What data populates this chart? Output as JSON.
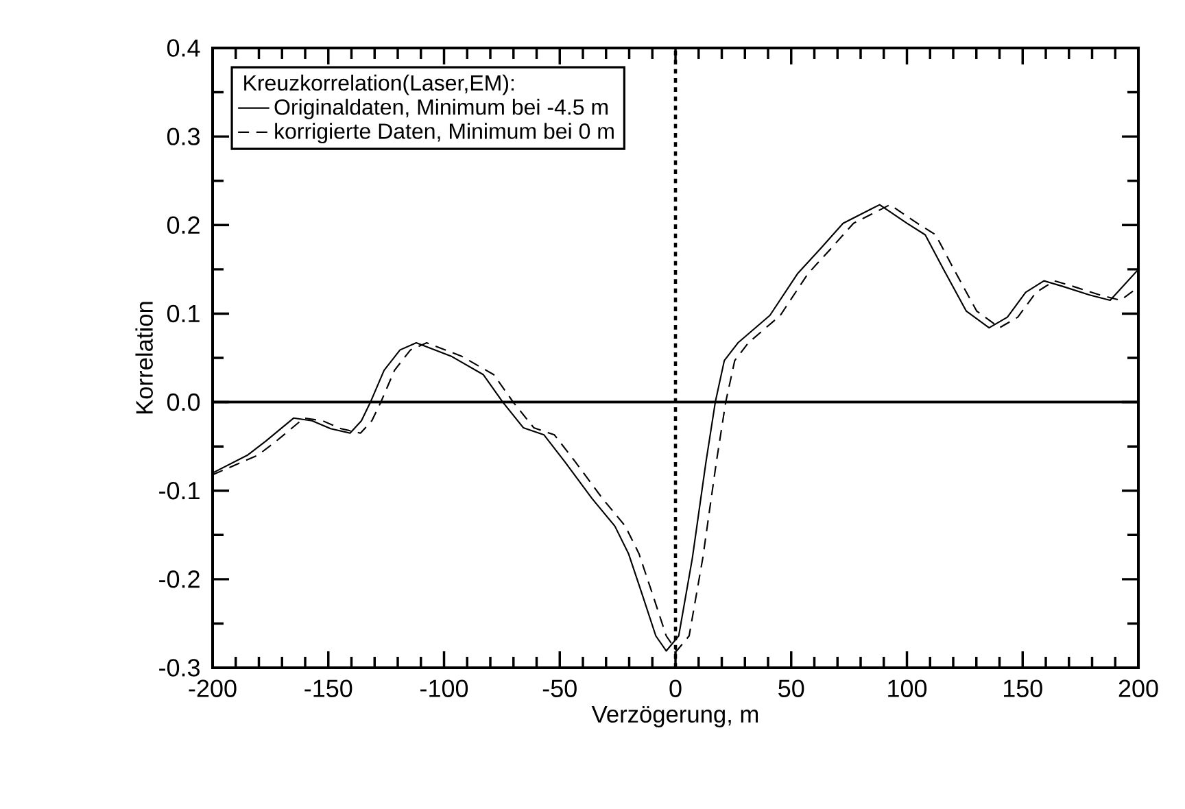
{
  "chart_data": {
    "type": "line",
    "xlabel": "Verzögerung, m",
    "ylabel": "Korrelation",
    "xlim": [
      -200,
      200
    ],
    "ylim": [
      -0.3,
      0.4
    ],
    "xticks": [
      -200,
      -150,
      -100,
      -50,
      0,
      50,
      100,
      150,
      200
    ],
    "yticks": [
      -0.3,
      -0.2,
      -0.1,
      {
        "value": 0,
        "label": "0.0"
      },
      0.1,
      0.2,
      0.3,
      0.4
    ],
    "legend": "top left",
    "legend_title": "Kreuzkorrelation(Laser,EM):",
    "ref_lines": [
      {
        "axis": "y",
        "value": 0,
        "line_style": "solid"
      },
      {
        "axis": "x",
        "value": 0,
        "line_style": "dotted"
      }
    ],
    "series": [
      {
        "name": "Originaldaten, Minimum bei -4.5 m",
        "color": "#000000",
        "line_style": "solid",
        "x": [
          -200,
          -185,
          -177,
          -165,
          -157,
          -149,
          -140.6,
          -135.7,
          -131.8,
          -125.9,
          -119,
          -112,
          -97,
          -83,
          -74.6,
          -65.7,
          -56.8,
          -47.9,
          -36,
          -26.2,
          -20.3,
          -14.4,
          -8.5,
          -4,
          1.4,
          7.3,
          13.2,
          17.2,
          21.1,
          27,
          40.8,
          52.7,
          62.5,
          72.4,
          88.2,
          100,
          107.9,
          115.8,
          125.6,
          135.5,
          143.4,
          151.3,
          159.2,
          167,
          178.9,
          187.8,
          200
        ],
        "values": [
          -0.08,
          -0.06,
          -0.044,
          -0.018,
          -0.021,
          -0.03,
          -0.035,
          -0.021,
          0.0,
          0.036,
          0.059,
          0.067,
          0.052,
          0.031,
          0.0,
          -0.029,
          -0.037,
          -0.067,
          -0.109,
          -0.14,
          -0.171,
          -0.217,
          -0.264,
          -0.281,
          -0.264,
          -0.176,
          -0.067,
          0.0,
          0.047,
          0.067,
          0.098,
          0.145,
          0.173,
          0.202,
          0.223,
          0.202,
          0.189,
          0.15,
          0.103,
          0.084,
          0.096,
          0.124,
          0.137,
          0.131,
          0.121,
          0.115,
          0.15
        ]
      },
      {
        "name": "korrigierte Daten, Minimum bei 0 m",
        "color": "#000000",
        "line_style": "dashed",
        "x": [
          -200,
          -180.5,
          -172.5,
          -160.5,
          -152.5,
          -144.5,
          -136.1,
          -131.2,
          -127.3,
          -121.4,
          -114.5,
          -107.5,
          -92.5,
          -78.5,
          -70.1,
          -61.2,
          -52.3,
          -43.4,
          -31.5,
          -21.7,
          -15.8,
          -9.9,
          -4,
          0.5,
          5.9,
          11.8,
          17.7,
          21.7,
          25.6,
          31.5,
          45.3,
          57.2,
          67,
          76.9,
          92.7,
          104.5,
          112.4,
          120.3,
          130.1,
          140,
          147.9,
          155.8,
          163.7,
          171.5,
          183.4,
          192.3,
          200
        ],
        "values": [
          -0.082,
          -0.06,
          -0.044,
          -0.018,
          -0.021,
          -0.03,
          -0.035,
          -0.021,
          0.0,
          0.036,
          0.059,
          0.067,
          0.052,
          0.031,
          0.0,
          -0.029,
          -0.037,
          -0.067,
          -0.109,
          -0.14,
          -0.171,
          -0.217,
          -0.264,
          -0.281,
          -0.264,
          -0.176,
          -0.067,
          0.0,
          0.047,
          0.067,
          0.098,
          0.145,
          0.173,
          0.202,
          0.223,
          0.202,
          0.189,
          0.15,
          0.103,
          0.084,
          0.096,
          0.124,
          0.137,
          0.131,
          0.121,
          0.115,
          0.13
        ]
      }
    ]
  }
}
